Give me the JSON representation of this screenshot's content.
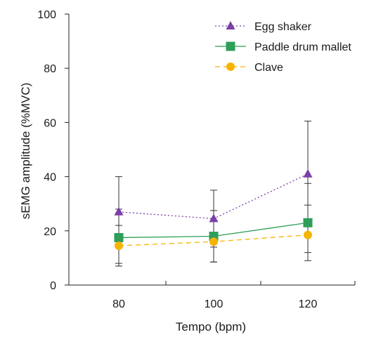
{
  "chart_data": {
    "type": "line",
    "xlabel": "Tempo (bpm)",
    "ylabel": "sEMG amplitude (%MVC)",
    "x": [
      80,
      100,
      120
    ],
    "x_ticks": [
      "80",
      "100",
      "120"
    ],
    "ylim": [
      0,
      100
    ],
    "y_ticks": [
      0,
      20,
      40,
      60,
      80,
      100
    ],
    "grid": false,
    "legend_position": "top-right",
    "series": [
      {
        "name": "Egg shaker",
        "values": [
          27,
          24.5,
          41
        ],
        "error_low": [
          8,
          14,
          22
        ],
        "error_high": [
          40,
          35,
          60.5
        ],
        "color": "#7b3fa8",
        "marker": "triangle",
        "line_style": "dotted"
      },
      {
        "name": "Paddle drum mallet",
        "values": [
          17.5,
          18,
          23
        ],
        "error_low": [
          7,
          8.5,
          9
        ],
        "error_high": [
          28,
          27.5,
          37.5
        ],
        "color": "#2e9e58",
        "marker": "square",
        "line_style": "solid"
      },
      {
        "name": "Clave",
        "values": [
          14.5,
          16,
          18.5
        ],
        "error_low": [
          7,
          8.5,
          12
        ],
        "error_high": [
          22,
          23.5,
          29.5
        ],
        "color": "#f5b400",
        "marker": "circle",
        "line_style": "dashed"
      }
    ]
  }
}
